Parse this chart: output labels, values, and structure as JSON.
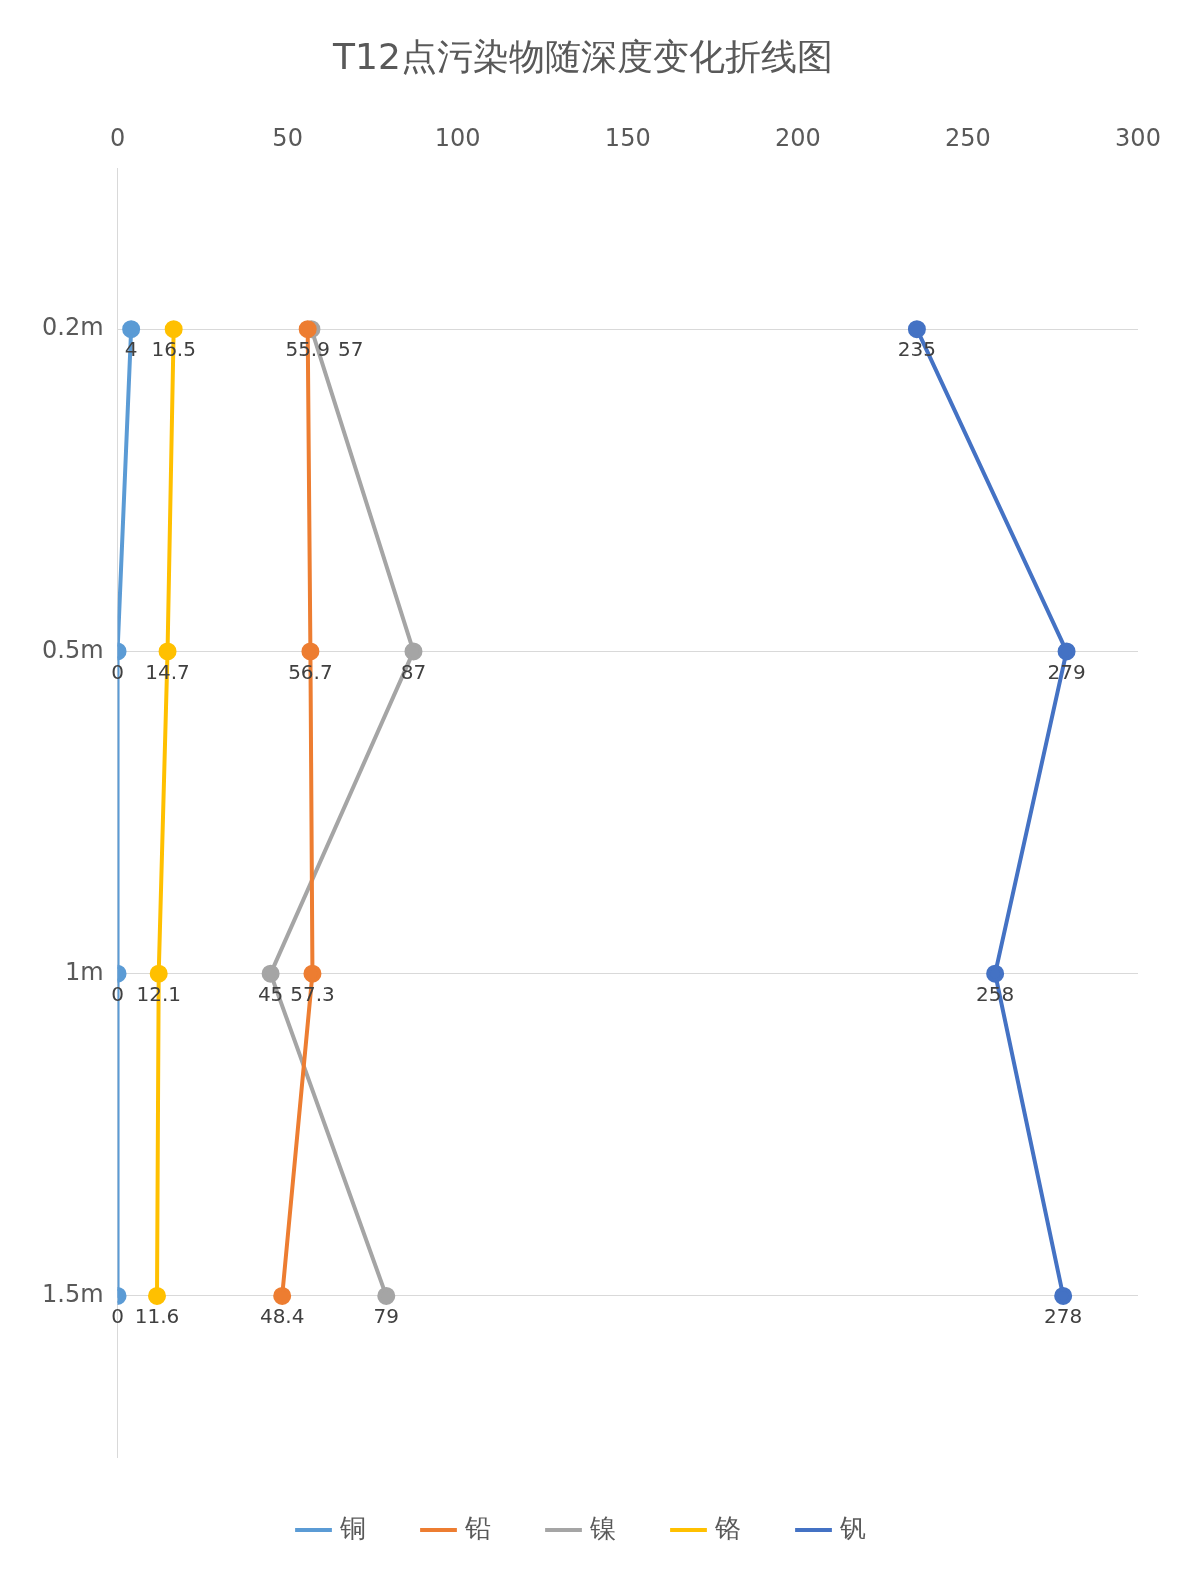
{
  "chart_data": {
    "type": "line",
    "title": "T12点污染物随深度变化折线图",
    "orientation": "horizontal",
    "categories": [
      "0.2m",
      "0.5m",
      "1m",
      "1.5m"
    ],
    "series": [
      {
        "name": "铜",
        "color": "#5b9bd5",
        "values": [
          4,
          0,
          0,
          0
        ]
      },
      {
        "name": "铅",
        "color": "#ed7d31",
        "values": [
          55.9,
          56.7,
          57.3,
          48.4
        ]
      },
      {
        "name": "镍",
        "color": "#a5a5a5",
        "values": [
          57,
          87,
          45,
          79
        ]
      },
      {
        "name": "铬",
        "color": "#ffc000",
        "values": [
          16.5,
          14.7,
          12.1,
          11.6
        ]
      },
      {
        "name": "钒",
        "color": "#4472c4",
        "values": [
          235,
          279,
          258,
          278
        ]
      }
    ],
    "xlim": [
      0,
      300
    ],
    "xticks": [
      0,
      50,
      100,
      150,
      200,
      250,
      300
    ],
    "grid": "y",
    "legend": "bottom",
    "marker": "circle",
    "line_style": "solid",
    "data_labels": true
  }
}
